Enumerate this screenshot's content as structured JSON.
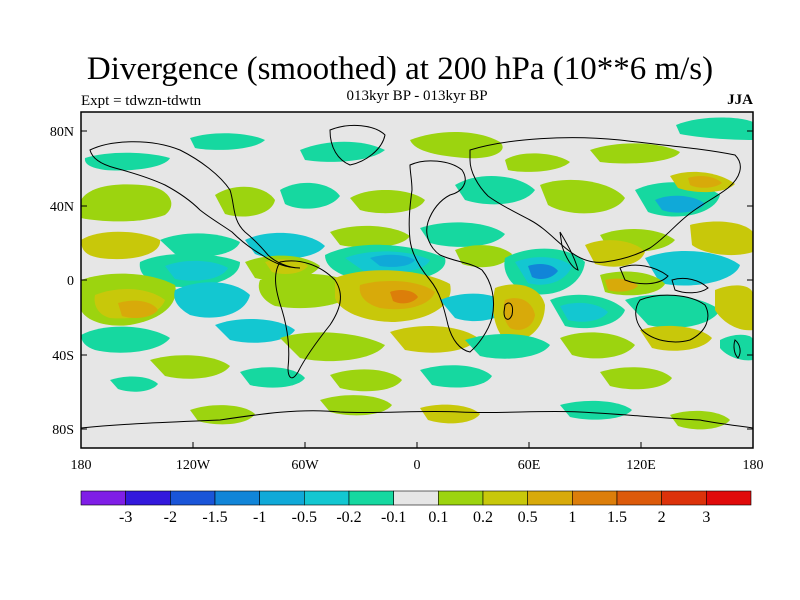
{
  "title": "Divergence (smoothed) at 200 hPa (10**6 m/s)",
  "experiment_label": "Expt = tdwzn-tdwtn",
  "period_label": "013kyr BP - 013kyr BP",
  "season_label": "JJA",
  "axes": {
    "x_tick_labels": [
      "180",
      "120W",
      "60W",
      "0",
      "60E",
      "120E",
      "180"
    ],
    "y_tick_labels": [
      "80N",
      "40N",
      "0",
      "40S",
      "80S"
    ]
  },
  "colorbar": {
    "level_labels": [
      "-3",
      "-2",
      "-1.5",
      "-1",
      "-0.5",
      "-0.2",
      "-0.1",
      "0.1",
      "0.2",
      "0.5",
      "1",
      "1.5",
      "2",
      "3"
    ],
    "colors": [
      "#7f1ee6",
      "#3318dc",
      "#1a55d8",
      "#1185d8",
      "#10a9d8",
      "#13c7d1",
      "#16d8a0",
      "#e6e6e6",
      "#9cd40f",
      "#c8c80a",
      "#d8aa0a",
      "#dc7e0a",
      "#dc5a0a",
      "#dc320a",
      "#e00a0a"
    ]
  },
  "colors": {
    "background_field": "#e6e6e6",
    "neg_weak": "#16d8a0",
    "neg_mid": "#13c7d1",
    "neg_strong": "#10a9d8",
    "pos_weak": "#9cd40f",
    "pos_mid": "#c8c80a",
    "pos_strong": "#d8aa0a",
    "pos_stronger": "#dc7e0a"
  }
}
